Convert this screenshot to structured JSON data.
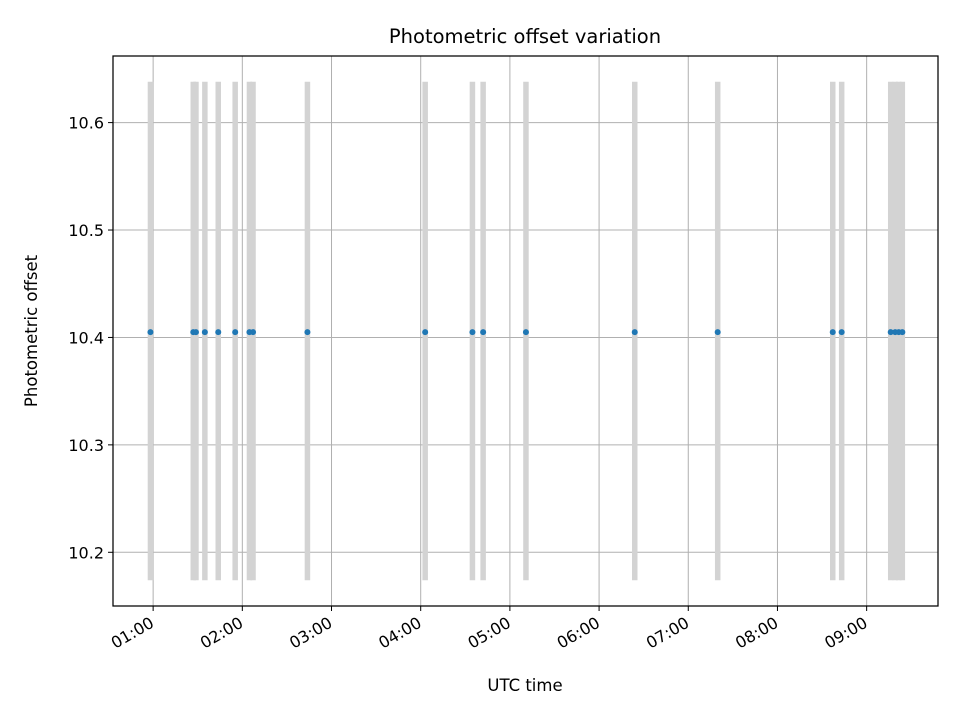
{
  "chart_data": {
    "type": "scatter",
    "title": "Photometric offset variation",
    "xlabel": "UTC time",
    "ylabel": "Photometric offset",
    "x_unit": "hours UTC",
    "xlim": [
      0.55,
      9.8
    ],
    "ylim": [
      10.15,
      10.662
    ],
    "x_ticks": [
      1,
      2,
      3,
      4,
      5,
      6,
      7,
      8,
      9
    ],
    "x_tick_labels": [
      "01:00",
      "02:00",
      "03:00",
      "04:00",
      "05:00",
      "06:00",
      "07:00",
      "08:00",
      "09:00"
    ],
    "y_ticks": [
      10.2,
      10.3,
      10.4,
      10.5,
      10.6
    ],
    "y_tick_labels": [
      "10.2",
      "10.3",
      "10.4",
      "10.5",
      "10.6"
    ],
    "grid": true,
    "series": [
      {
        "color": "#1f77b4",
        "x": [
          0.97,
          1.45,
          1.48,
          1.58,
          1.73,
          1.92,
          2.08,
          2.12,
          2.73,
          4.05,
          4.58,
          4.7,
          5.18,
          6.4,
          7.33,
          8.62,
          8.72,
          9.27,
          9.32,
          9.36,
          9.4
        ],
        "y": [
          10.405,
          10.405,
          10.405,
          10.405,
          10.405,
          10.405,
          10.405,
          10.405,
          10.405,
          10.405,
          10.405,
          10.405,
          10.405,
          10.405,
          10.405,
          10.405,
          10.405,
          10.405,
          10.405,
          10.405,
          10.405
        ],
        "error_band": [
          10.174,
          10.638
        ],
        "error_color": "#d3d3d3"
      }
    ]
  }
}
